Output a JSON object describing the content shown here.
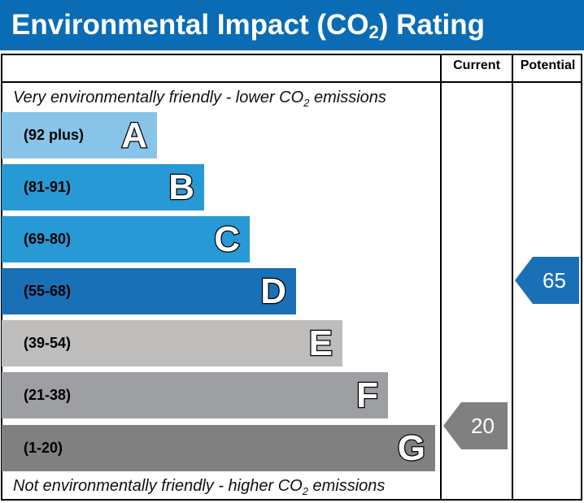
{
  "title": {
    "main": "Environmental Impact (CO",
    "sub": "2",
    "end": ") Rating"
  },
  "columns": {
    "current": "Current",
    "potential": "Potential"
  },
  "top_note": {
    "a": "Very environmentally friendly - lower CO",
    "sub": "2",
    "b": " emissions"
  },
  "bottom_note": {
    "a": "Not environmentally friendly - higher CO",
    "sub": "2",
    "b": " emissions"
  },
  "chart_data": {
    "type": "bar",
    "title": "Environmental Impact (CO2) Rating",
    "bands": [
      {
        "letter": "A",
        "range": "(92 plus)",
        "color": "#88c4e8"
      },
      {
        "letter": "B",
        "range": "(81-91)",
        "color": "#2799d4"
      },
      {
        "letter": "C",
        "range": "(69-80)",
        "color": "#2799d4"
      },
      {
        "letter": "D",
        "range": "(55-68)",
        "color": "#1a70b6"
      },
      {
        "letter": "E",
        "range": "(39-54)",
        "color": "#bebdbb"
      },
      {
        "letter": "F",
        "range": "(21-38)",
        "color": "#9d9fa2"
      },
      {
        "letter": "G",
        "range": "(1-20)",
        "color": "#808080"
      }
    ],
    "current": {
      "value": 20,
      "band": "G",
      "color": "#808080"
    },
    "potential": {
      "value": 65,
      "band": "D",
      "color": "#1a70b6"
    }
  }
}
